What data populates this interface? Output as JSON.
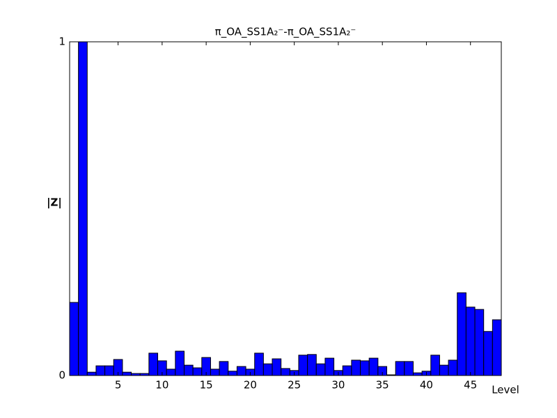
{
  "chart_data": {
    "type": "bar",
    "title": "π_OA_SS1A₂⁻-π_OA_SS1A₂⁻",
    "xlabel": "Level",
    "ylabel": "|Z|",
    "x": [
      0,
      1,
      2,
      3,
      4,
      5,
      6,
      7,
      8,
      9,
      10,
      11,
      12,
      13,
      14,
      15,
      16,
      17,
      18,
      19,
      20,
      21,
      22,
      23,
      24,
      25,
      26,
      27,
      28,
      29,
      30,
      31,
      32,
      33,
      34,
      35,
      36,
      37,
      38,
      39,
      40,
      41,
      42,
      43,
      44,
      45,
      46,
      47,
      48
    ],
    "values": [
      0.219,
      1,
      0.01,
      0.029,
      0.029,
      0.048,
      0.01,
      0.006,
      0.006,
      0.067,
      0.044,
      0.019,
      0.073,
      0.031,
      0.023,
      0.054,
      0.019,
      0.042,
      0.013,
      0.027,
      0.019,
      0.067,
      0.035,
      0.05,
      0.021,
      0.015,
      0.061,
      0.063,
      0.035,
      0.052,
      0.015,
      0.029,
      0.046,
      0.044,
      0.052,
      0.027,
      0.002,
      0.042,
      0.042,
      0.008,
      0.013,
      0.061,
      0.031,
      0.046,
      0.248,
      0.205,
      0.198,
      0.132,
      0.167
    ],
    "color": "#0000ff",
    "xlim": [
      -0.5,
      48.5
    ],
    "xticks": [
      5,
      10,
      15,
      20,
      25,
      30,
      35,
      40,
      45
    ],
    "ylim": [
      0,
      1
    ],
    "yticks": [
      0,
      1
    ]
  }
}
